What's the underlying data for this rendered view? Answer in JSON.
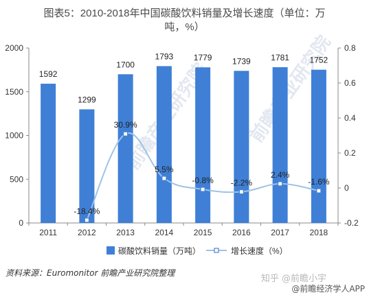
{
  "title_line1": "图表5：2010-2018年中国碳酸饮料销量及增长速度（单位：万",
  "title_line2": "吨，%）",
  "source": "资料来源：Euromonitor 前瞻产业研究院整理",
  "watermark_main": "知乎 @前瞻小宇",
  "watermark_sub": "@前瞻经济学人APP",
  "watermark_diag": "前瞻产业研究院",
  "colors": {
    "bar": "#3f7fd6",
    "line": "#9dc3e6",
    "marker_fill": "#ffffff",
    "marker_stroke": "#4a84cf",
    "axis": "#888888"
  },
  "chart_data": {
    "type": "bar",
    "categories": [
      "2011",
      "2012",
      "2013",
      "2014",
      "2015",
      "2016",
      "2017",
      "2018"
    ],
    "series": [
      {
        "name": "碳酸饮料销量（万吨）",
        "type": "bar",
        "axis": "left",
        "values": [
          1592,
          1299,
          1700,
          1793,
          1779,
          1739,
          1781,
          1752
        ],
        "labels": [
          "1592",
          "1299",
          "1700",
          "1793",
          "1779",
          "1739",
          "1781",
          "1752"
        ]
      },
      {
        "name": "增长速度（%）",
        "type": "line",
        "axis": "right",
        "values": [
          null,
          -0.184,
          0.309,
          0.055,
          -0.008,
          -0.022,
          0.024,
          -0.016
        ],
        "labels": [
          "",
          "-18.4%",
          "30.9%",
          "5.5%",
          "-0.8%",
          "-2.2%",
          "2.4%",
          "-1.6%"
        ]
      }
    ],
    "y_left": {
      "ticks": [
        "0",
        "500",
        "1000",
        "1500",
        "2000"
      ],
      "lim": [
        0,
        2000
      ]
    },
    "y_right": {
      "ticks": [
        "-0.2",
        "0",
        "0.2",
        "0.4",
        "0.6",
        "0.8"
      ],
      "lim": [
        -0.2,
        0.8
      ]
    },
    "legend_position": "bottom",
    "grid": false
  }
}
